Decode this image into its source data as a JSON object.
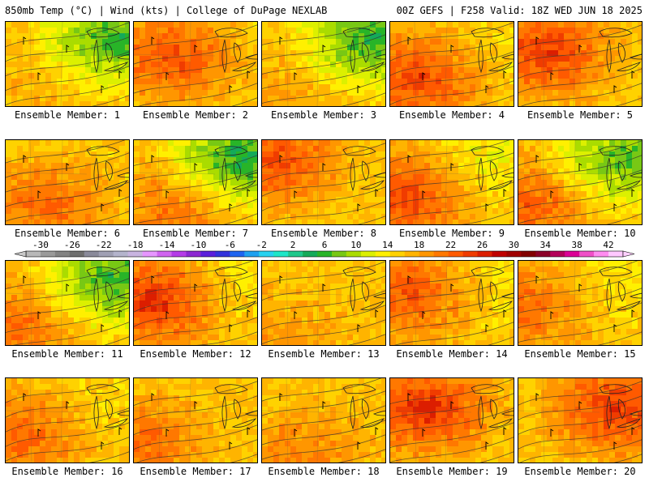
{
  "header": {
    "left": "850mb Temp (°C) | Wind (kts) | College of DuPage NEXLAB",
    "right": "00Z GEFS | F258 Valid: 18Z WED JUN 18 2025"
  },
  "label_prefix": "Ensemble Member: ",
  "colorbar": {
    "ticks": [
      "-30",
      "-26",
      "-22",
      "-18",
      "-14",
      "-10",
      "-6",
      "-2",
      "2",
      "6",
      "10",
      "14",
      "18",
      "22",
      "26",
      "30",
      "34",
      "38",
      "42"
    ],
    "colors": [
      "#b8b8b8",
      "#9a9a9a",
      "#838383",
      "#6e6e6e",
      "#8a8a9a",
      "#a0a0b4",
      "#b4b4cc",
      "#c8b4e0",
      "#e696ff",
      "#d064f0",
      "#b43ce8",
      "#8c28d2",
      "#5a1edc",
      "#3232dc",
      "#1e64f0",
      "#1ea0f0",
      "#28d2f0",
      "#1ee6c8",
      "#1ec88c",
      "#14aa5a",
      "#28b428",
      "#78c814",
      "#aadc00",
      "#dcf000",
      "#fff000",
      "#ffd200",
      "#ffb400",
      "#ff9600",
      "#ff7800",
      "#ff5a00",
      "#f03c00",
      "#dc1e00",
      "#c00000",
      "#a00000",
      "#820000",
      "#8c0028",
      "#b4005a",
      "#dc0096",
      "#f050c8",
      "#ff8cf0",
      "#ffc8ff"
    ]
  },
  "members": [
    {
      "id": 1,
      "cold": 0.95,
      "hot": 0.1,
      "hotspot": [
        0.05,
        0.8
      ]
    },
    {
      "id": 2,
      "cold": 0.05,
      "hot": 0.75,
      "hotspot": [
        0.3,
        0.35
      ]
    },
    {
      "id": 3,
      "cold": 1.0,
      "hot": 0.2,
      "hotspot": [
        0.1,
        0.8
      ]
    },
    {
      "id": 4,
      "cold": 0.1,
      "hot": 0.8,
      "hotspot": [
        0.2,
        0.6
      ]
    },
    {
      "id": 5,
      "cold": 0.0,
      "hot": 0.85,
      "hotspot": [
        0.2,
        0.3
      ]
    },
    {
      "id": 6,
      "cold": 0.05,
      "hot": 0.6,
      "hotspot": [
        0.3,
        0.7
      ]
    },
    {
      "id": 7,
      "cold": 1.1,
      "hot": 0.5,
      "hotspot": [
        0.3,
        0.8
      ]
    },
    {
      "id": 8,
      "cold": 0.0,
      "hot": 0.75,
      "hotspot": [
        0.1,
        0.2
      ]
    },
    {
      "id": 9,
      "cold": 0.3,
      "hot": 0.8,
      "hotspot": [
        0.1,
        0.6
      ]
    },
    {
      "id": 10,
      "cold": 0.9,
      "hot": 0.6,
      "hotspot": [
        0.05,
        0.7
      ]
    },
    {
      "id": 11,
      "cold": 1.0,
      "hot": 0.5,
      "hotspot": [
        0.05,
        0.7
      ]
    },
    {
      "id": 12,
      "cold": 0.2,
      "hot": 0.95,
      "hotspot": [
        0.15,
        0.4
      ]
    },
    {
      "id": 13,
      "cold": 0.0,
      "hot": 0.25,
      "hotspot": [
        0.1,
        0.8
      ]
    },
    {
      "id": 14,
      "cold": 0.2,
      "hot": 0.7,
      "hotspot": [
        0.15,
        0.3
      ]
    },
    {
      "id": 15,
      "cold": 0.2,
      "hot": 0.55,
      "hotspot": [
        0.05,
        0.5
      ]
    },
    {
      "id": 16,
      "cold": 0.1,
      "hot": 0.6,
      "hotspot": [
        0.1,
        0.6
      ]
    },
    {
      "id": 17,
      "cold": 0.0,
      "hot": 0.55,
      "hotspot": [
        0.05,
        0.7
      ]
    },
    {
      "id": 18,
      "cold": 0.0,
      "hot": 0.4,
      "hotspot": [
        0.3,
        0.8
      ]
    },
    {
      "id": 19,
      "cold": 0.0,
      "hot": 0.95,
      "hotspot": [
        0.25,
        0.3
      ]
    },
    {
      "id": 20,
      "cold": 0.0,
      "hot": 0.9,
      "hotspot": [
        0.75,
        0.3
      ]
    }
  ]
}
